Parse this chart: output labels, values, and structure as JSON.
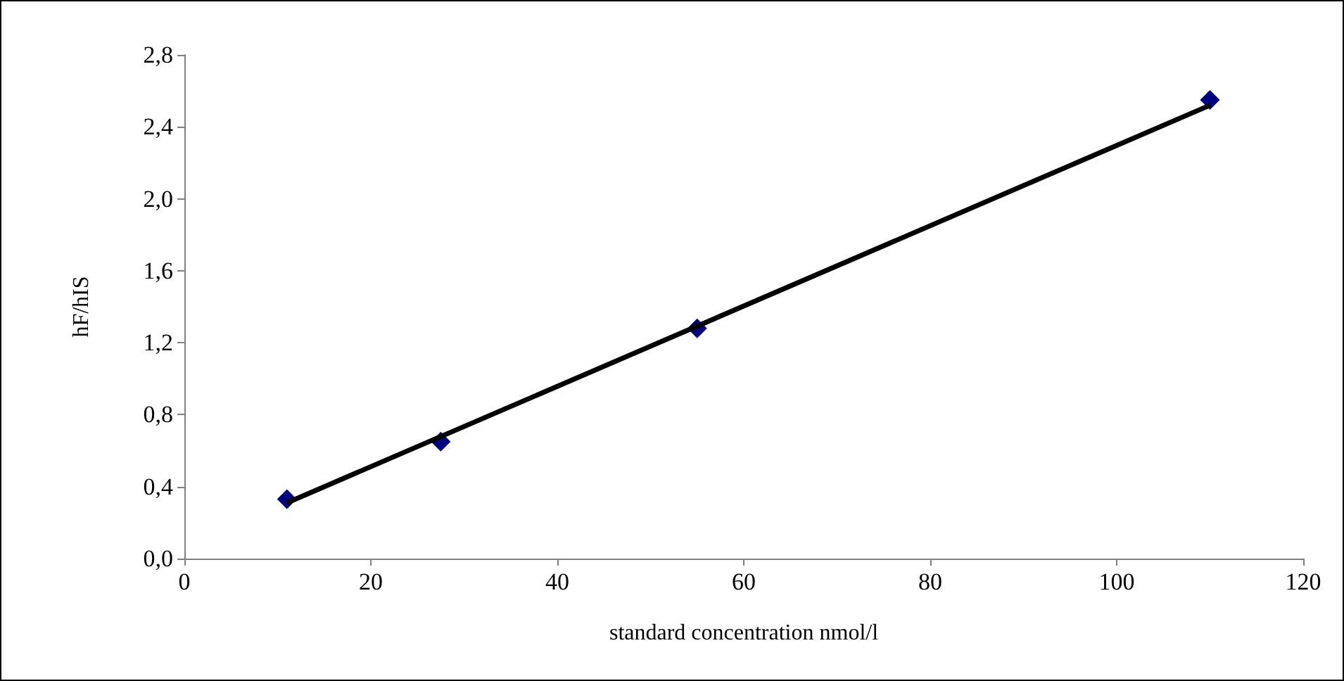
{
  "chart_data": {
    "type": "scatter",
    "xlabel": "standard concentration nmol/l",
    "ylabel": "hF/hIS",
    "x": [
      11,
      27.5,
      55,
      110
    ],
    "series": [
      {
        "color": "#000080",
        "marker": "diamond",
        "values": [
          0.33,
          0.65,
          1.28,
          2.55
        ]
      },
      {
        "type": "line",
        "color": "#000000",
        "marker": "none",
        "line_style": "solid",
        "x": [
          11,
          110
        ],
        "values": [
          0.31,
          2.52
        ]
      }
    ],
    "xlim": [
      0,
      120
    ],
    "xticks": [
      0,
      20,
      40,
      60,
      80,
      100,
      120
    ],
    "ylim": [
      0,
      2.8
    ],
    "yticks": [
      {
        "value": 0,
        "label": "0,0"
      },
      {
        "value": 0.4,
        "label": "0,4"
      },
      {
        "value": 0.8,
        "label": "0,8"
      },
      {
        "value": 1.2,
        "label": "1,2"
      },
      {
        "value": 1.6,
        "label": "1,6"
      },
      {
        "value": 2.0,
        "label": "2,0"
      },
      {
        "value": 2.4,
        "label": "2,4"
      },
      {
        "value": 2.8,
        "label": "2,8"
      }
    ],
    "grid": false
  }
}
